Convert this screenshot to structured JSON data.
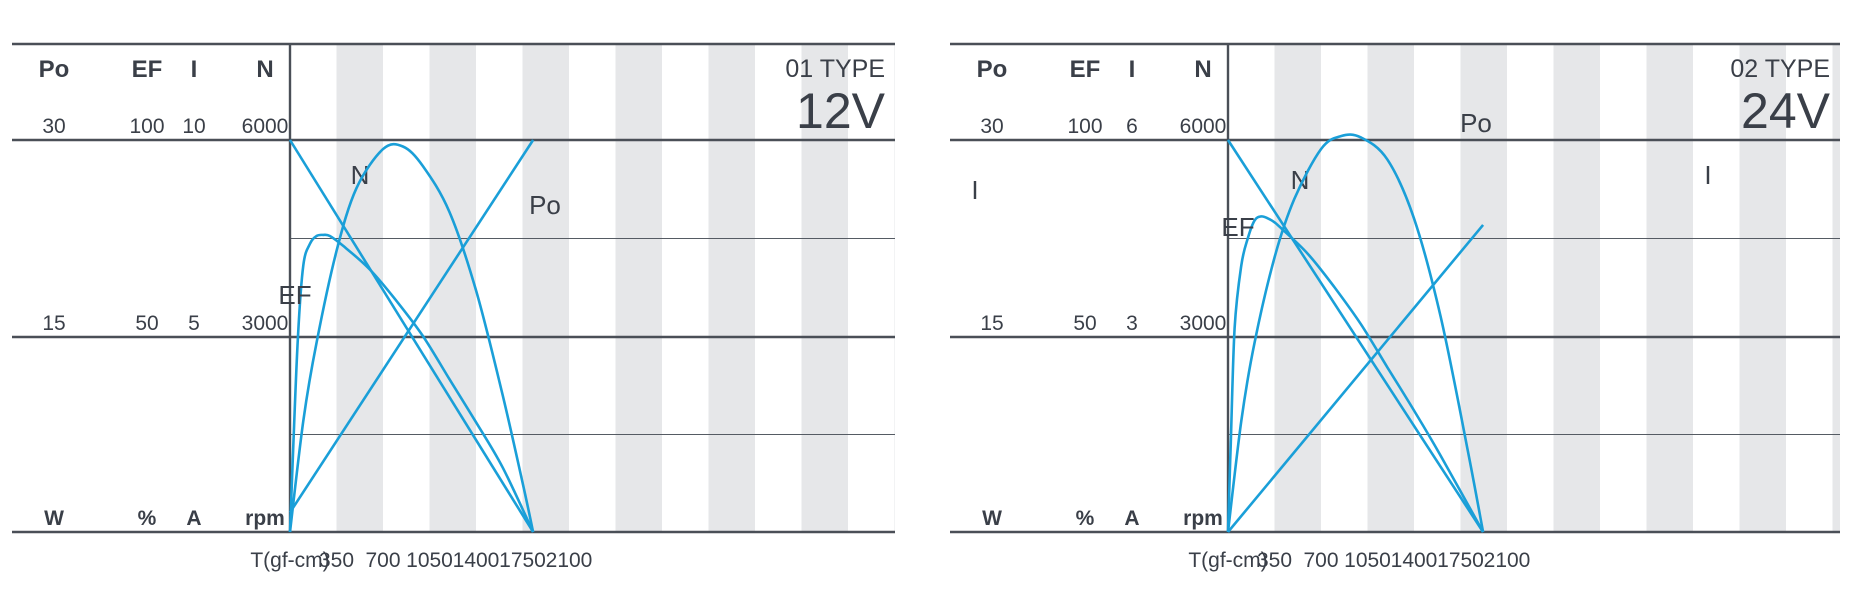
{
  "chart_data": [
    {
      "type": "line",
      "title_type": "01 TYPE",
      "title_voltage": "12V",
      "xlabel": "T(gf-cm)",
      "x_ticks": [
        "350",
        "700",
        "1050",
        "1400",
        "1750",
        "2100"
      ],
      "xlim": [
        0,
        2100
      ],
      "axes": [
        {
          "name": "Po",
          "unit": "W",
          "mid": "15",
          "max": "30"
        },
        {
          "name": "EF",
          "unit": "%",
          "mid": "50",
          "max": "100"
        },
        {
          "name": "I",
          "unit": "A",
          "mid": "5",
          "max": "10"
        },
        {
          "name": "N",
          "unit": "rpm",
          "mid": "3000",
          "max": "6000"
        }
      ],
      "series": [
        {
          "name": "N",
          "x": [
            0,
            1830
          ],
          "y": [
            6000,
            0
          ]
        },
        {
          "name": "I",
          "x": [
            0,
            1830
          ],
          "y": [
            0.5,
            10
          ]
        },
        {
          "name": "Po",
          "x": [
            0,
            100,
            200,
            350,
            500,
            700,
            850,
            1000,
            1200,
            1400,
            1600,
            1750,
            1830
          ],
          "y": [
            0,
            8.5,
            14.5,
            21.5,
            26.3,
            29.3,
            29.5,
            28.0,
            24.5,
            18.5,
            10.5,
            3.8,
            0
          ]
        },
        {
          "name": "EF",
          "x": [
            0,
            25,
            60,
            100,
            150,
            200,
            250,
            300,
            400,
            600,
            800,
            1000,
            1200,
            1400,
            1600,
            1830
          ],
          "y": [
            0,
            22,
            50,
            68,
            73.5,
            75.5,
            75.8,
            75.5,
            73,
            67,
            59,
            50,
            39,
            28,
            16.5,
            0
          ]
        }
      ],
      "grid": true
    },
    {
      "type": "line",
      "title_type": "02 TYPE",
      "title_voltage": "24V",
      "xlabel": "T(gf-cm)",
      "x_ticks": [
        "350",
        "700",
        "1050",
        "1400",
        "1750",
        "2100"
      ],
      "xlim": [
        0,
        2100
      ],
      "axes": [
        {
          "name": "Po",
          "unit": "W",
          "mid": "15",
          "max": "30"
        },
        {
          "name": "EF",
          "unit": "%",
          "mid": "50",
          "max": "100"
        },
        {
          "name": "I",
          "unit": "A",
          "mid": "3",
          "max": "6"
        },
        {
          "name": "N",
          "unit": "rpm",
          "mid": "3000",
          "max": "6000"
        }
      ],
      "series": [
        {
          "name": "N",
          "x": [
            0,
            1920
          ],
          "y": [
            6000,
            0
          ]
        },
        {
          "name": "I",
          "x": [
            0,
            1920
          ],
          "y": [
            0,
            4.7
          ]
        },
        {
          "name": "Po",
          "x": [
            0,
            100,
            200,
            350,
            500,
            700,
            850,
            1000,
            1200,
            1400,
            1600,
            1800,
            1920
          ],
          "y": [
            0,
            8.5,
            14.5,
            21,
            25.5,
            29.3,
            30.3,
            30.2,
            28.5,
            24,
            16.5,
            6.5,
            0
          ]
        },
        {
          "name": "EF",
          "x": [
            0,
            20,
            50,
            100,
            150,
            200,
            250,
            300,
            350,
            400,
            600,
            800,
            1000,
            1200,
            1400,
            1600,
            1920
          ],
          "y": [
            0,
            22,
            52,
            68,
            75,
            79.5,
            80.5,
            80,
            79,
            77.5,
            71,
            62.5,
            53,
            42,
            31,
            19.5,
            0
          ]
        }
      ],
      "grid": true
    }
  ]
}
